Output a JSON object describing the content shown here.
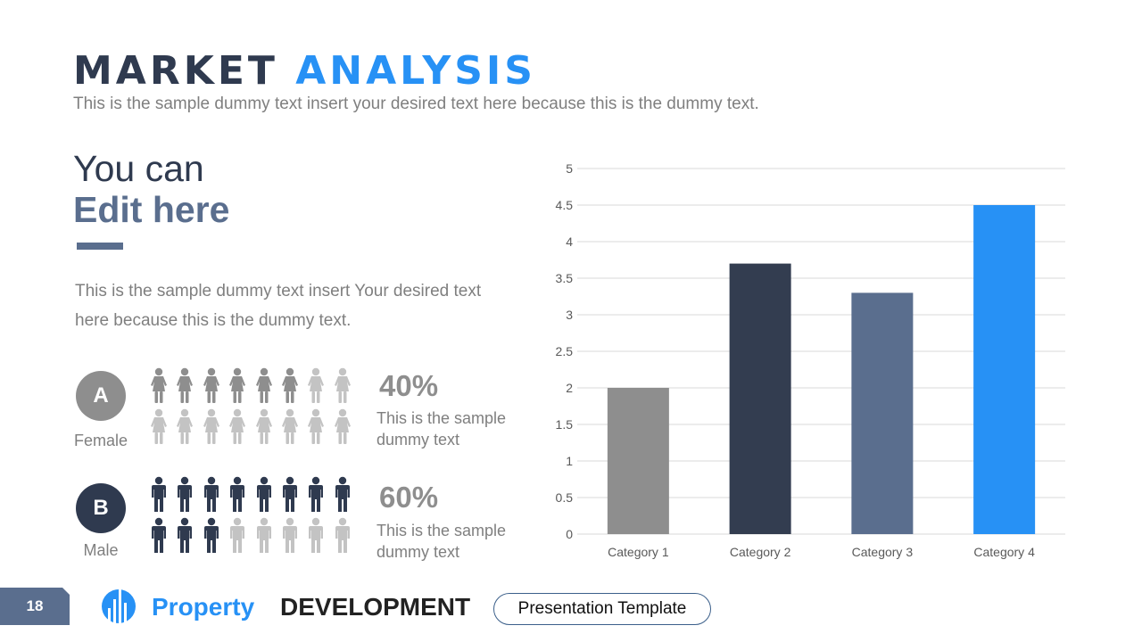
{
  "header": {
    "title_dark": "MARKET",
    "title_accent": "ANALYSIS",
    "subtitle": "This is the sample dummy  text insert your desired text here because this is the dummy  text."
  },
  "left": {
    "heading_line1": "You can",
    "heading_line2": "Edit here",
    "body": "This is the sample dummy  text insert Your desired text here because this is the dummy  text."
  },
  "groups": [
    {
      "badge": "A",
      "label": "Female",
      "percent": "40%",
      "desc_line1": "This is the sample",
      "desc_line2": "dummy text",
      "icon": "female-person-icon",
      "filled": 6,
      "total": 16,
      "fill_color": "#8e8e8e",
      "empty_color": "#c3c3c3"
    },
    {
      "badge": "B",
      "label": "Male",
      "percent": "60%",
      "desc_line1": "This is the sample",
      "desc_line2": "dummy text",
      "icon": "male-person-icon",
      "filled": 11,
      "total": 16,
      "fill_color": "#2f3a4f",
      "empty_color": "#c3c3c3"
    }
  ],
  "chart_data": {
    "type": "bar",
    "title": "",
    "xlabel": "",
    "ylabel": "",
    "categories": [
      "Category 1",
      "Category 2",
      "Category 3",
      "Category 4"
    ],
    "values": [
      2.0,
      3.7,
      3.3,
      4.5
    ],
    "colors": [
      "#8e8e8e",
      "#333d50",
      "#5a6e8e",
      "#2791f5"
    ],
    "ylim": [
      0,
      5
    ],
    "yticks": [
      "0",
      "0.5",
      "1",
      "1.5",
      "2",
      "2.5",
      "3",
      "3.5",
      "4",
      "4.5",
      "5"
    ],
    "grid": true,
    "legend": "none"
  },
  "footer": {
    "page_number": "18",
    "brand_primary": "Property",
    "brand_secondary": "DEVELOPMENT",
    "tag": "Presentation Template"
  }
}
